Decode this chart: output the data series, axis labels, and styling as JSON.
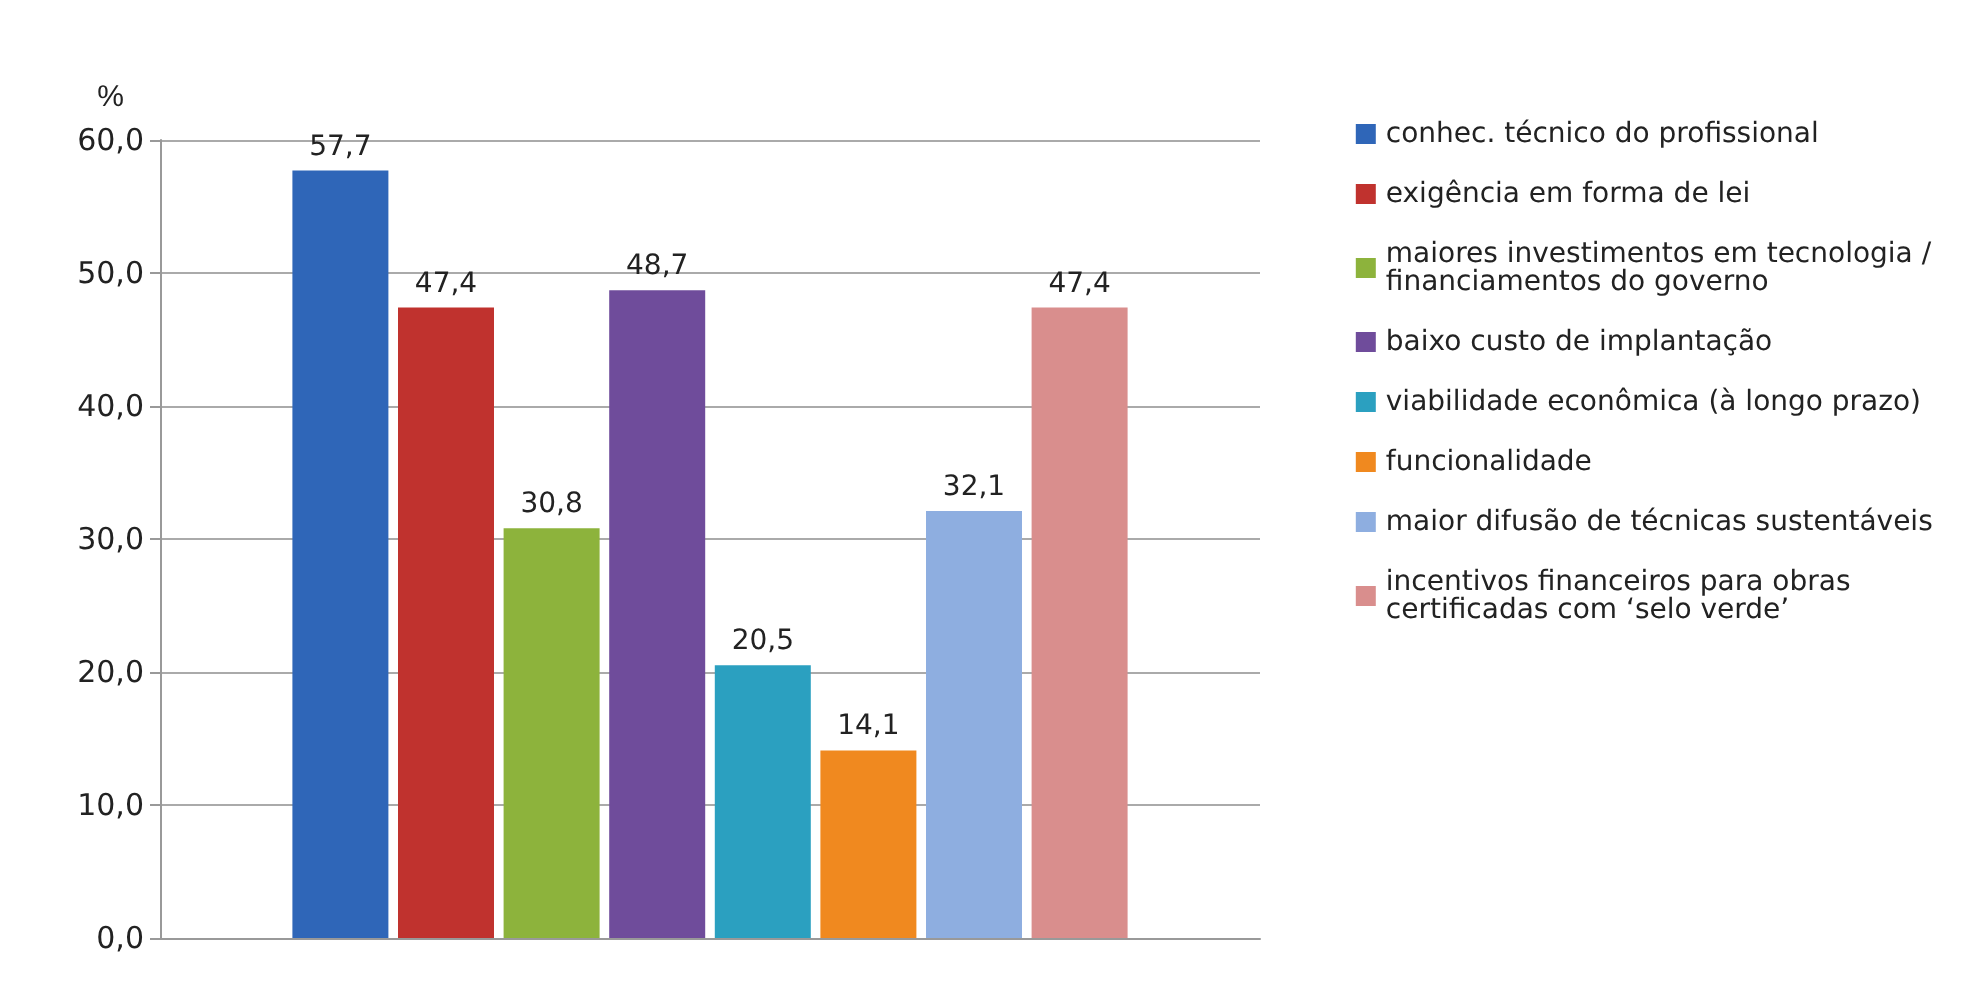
{
  "chart_data": {
    "type": "bar",
    "ylabel": "%",
    "categories": [
      null
    ],
    "series": [
      {
        "name": "conhec. técnico do profissional",
        "color": "#2f66b8",
        "values": [
          57.7
        ],
        "value_labels": [
          "57,7"
        ]
      },
      {
        "name": "exigência em forma de lei",
        "color": "#c0322e",
        "values": [
          47.4
        ],
        "value_labels": [
          "47,4"
        ]
      },
      {
        "name": "maiores investimentos em tecnologia / financiamentos do governo",
        "color": "#8db33c",
        "values": [
          30.8
        ],
        "value_labels": [
          "30,8"
        ]
      },
      {
        "name": "baixo custo de implantação",
        "color": "#6f4c9b",
        "values": [
          48.7
        ],
        "value_labels": [
          "48,7"
        ]
      },
      {
        "name": "viabilidade econômica (à longo prazo)",
        "color": "#2ba0c0",
        "values": [
          20.5
        ],
        "value_labels": [
          "20,5"
        ]
      },
      {
        "name": "funcionalidade",
        "color": "#f0891f",
        "values": [
          14.1
        ],
        "value_labels": [
          "14,1"
        ]
      },
      {
        "name": "maior difusão de técnicas sustentáveis",
        "color": "#8eaee0",
        "values": [
          32.1
        ],
        "value_labels": [
          "32,1"
        ]
      },
      {
        "name": "incentivos financeiros para obras certificadas com ‘selo verde’",
        "color": "#d98e8d",
        "values": [
          47.4
        ],
        "value_labels": [
          "47,4"
        ]
      }
    ],
    "ylim": [
      0,
      60
    ],
    "yticks": [
      {
        "value": 0,
        "label": "0,0"
      },
      {
        "value": 10,
        "label": "10,0"
      },
      {
        "value": 20,
        "label": "20,0"
      },
      {
        "value": 30,
        "label": "30,0"
      },
      {
        "value": 40,
        "label": "40,0"
      },
      {
        "value": 50,
        "label": "50,0"
      },
      {
        "value": 60,
        "label": "60,0"
      }
    ],
    "grid": "y",
    "legend": "right"
  }
}
